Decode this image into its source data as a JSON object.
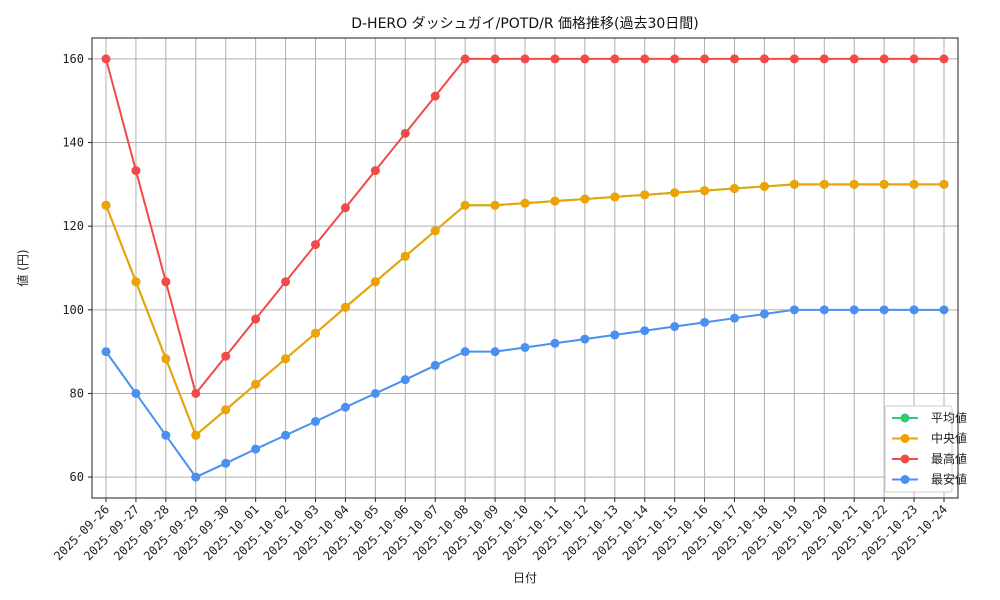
{
  "chart_data": {
    "type": "line",
    "title": "D-HERO ダッシュガイ/POTD/R 価格推移(過去30日間)",
    "xlabel": "日付",
    "ylabel": "値 (円)",
    "ylim": [
      55,
      165
    ],
    "yticks": [
      60,
      80,
      100,
      120,
      140,
      160
    ],
    "grid": true,
    "legend_position": "bottom-right",
    "categories": [
      "2025-09-26",
      "2025-09-27",
      "2025-09-28",
      "2025-09-29",
      "2025-09-30",
      "2025-10-01",
      "2025-10-02",
      "2025-10-03",
      "2025-10-04",
      "2025-10-05",
      "2025-10-06",
      "2025-10-07",
      "2025-10-08",
      "2025-10-09",
      "2025-10-10",
      "2025-10-11",
      "2025-10-12",
      "2025-10-13",
      "2025-10-14",
      "2025-10-15",
      "2025-10-16",
      "2025-10-17",
      "2025-10-18",
      "2025-10-19",
      "2025-10-20",
      "2025-10-21",
      "2025-10-22",
      "2025-10-23",
      "2025-10-24"
    ],
    "series": [
      {
        "name": "平均値",
        "color": "#2ecc71",
        "values": [
          125,
          106.7,
          88.3,
          70,
          76.1,
          82.2,
          88.3,
          94.4,
          100.6,
          106.7,
          112.8,
          118.9,
          125,
          125,
          125.5,
          126,
          126.5,
          127,
          127.5,
          128,
          128.5,
          129,
          129.5,
          130,
          130,
          130,
          130,
          130,
          130
        ]
      },
      {
        "name": "中央値",
        "color": "#f0a202",
        "values": [
          125,
          106.7,
          88.3,
          70,
          76.1,
          82.2,
          88.3,
          94.4,
          100.6,
          106.7,
          112.8,
          118.9,
          125,
          125,
          125.5,
          126,
          126.5,
          127,
          127.5,
          128,
          128.5,
          129,
          129.5,
          130,
          130,
          130,
          130,
          130,
          130
        ]
      },
      {
        "name": "最高値",
        "color": "#f04a4a",
        "values": [
          160,
          133.3,
          106.7,
          80,
          88.9,
          97.8,
          106.7,
          115.6,
          124.4,
          133.3,
          142.2,
          151.1,
          160,
          160,
          160,
          160,
          160,
          160,
          160,
          160,
          160,
          160,
          160,
          160,
          160,
          160,
          160,
          160,
          160
        ]
      },
      {
        "name": "最安値",
        "color": "#4a90f0",
        "values": [
          90,
          80,
          70,
          60,
          63.3,
          66.7,
          70,
          73.3,
          76.7,
          80,
          83.3,
          86.7,
          90,
          90,
          91,
          92,
          93,
          94,
          95,
          96,
          97,
          98,
          99,
          100,
          100,
          100,
          100,
          100,
          100
        ]
      }
    ]
  }
}
